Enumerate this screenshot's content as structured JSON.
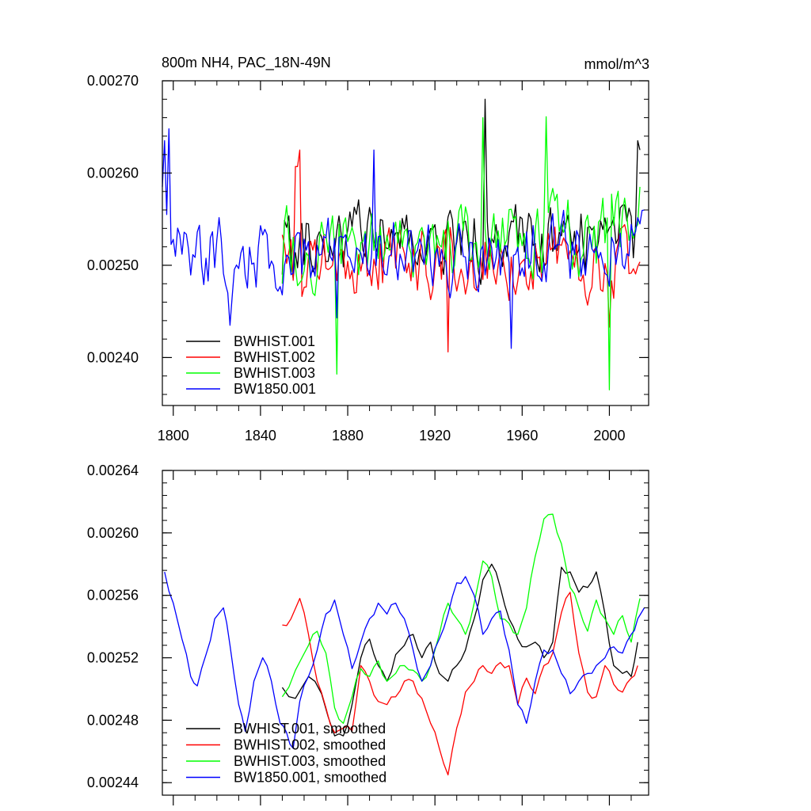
{
  "chart_data": [
    {
      "type": "line",
      "title": "800m NH4, PAC_18N-49N",
      "units": "mmol/m^3",
      "xlim": [
        1795,
        2018
      ],
      "ylim": [
        0.002348,
        0.0027
      ],
      "xticks": [
        1800,
        1840,
        1880,
        1920,
        1960,
        2000
      ],
      "yticks": [
        0.0024,
        0.0025,
        0.0026,
        0.0027
      ],
      "ytick_labels": [
        "0.00240",
        "0.00250",
        "0.00260",
        "0.00270"
      ],
      "series": [
        {
          "name": "BWHIST.001",
          "color": "#000000",
          "start": 1850,
          "end": 2014,
          "base": 0.00252,
          "amp": 4e-05,
          "trend": 1.2e-05,
          "seed": 11,
          "fixed": [
            [
              1850,
              0.00249
            ],
            [
              1943,
              0.00268
            ],
            [
              2013,
              0.002635
            ],
            [
              2014,
              0.002625
            ]
          ]
        },
        {
          "name": "BWHIST.002",
          "color": "#ff0000",
          "start": 1850,
          "end": 2014,
          "base": 0.002508,
          "amp": 4e-05,
          "trend": 0.0,
          "seed": 23,
          "fixed": [
            [
              1850,
              0.002533
            ],
            [
              1856,
              0.002607
            ],
            [
              1857,
              0.002607
            ],
            [
              1858,
              0.002625
            ],
            [
              1926,
              0.002406
            ],
            [
              2000,
              0.002433
            ]
          ]
        },
        {
          "name": "BWHIST.003",
          "color": "#00ff00",
          "start": 1850,
          "end": 2014,
          "base": 0.002515,
          "amp": 4.2e-05,
          "trend": 2e-05,
          "seed": 37,
          "fixed": [
            [
              1850,
              0.00248
            ],
            [
              1875,
              0.002382
            ],
            [
              1942,
              0.00266
            ],
            [
              1971,
              0.002661
            ],
            [
              2000,
              0.002365
            ],
            [
              2014,
              0.002585
            ]
          ]
        },
        {
          "name": "BW1850.001",
          "color": "#0000ff",
          "start": 1795,
          "end": 2016,
          "base": 0.002515,
          "amp": 4e-05,
          "trend": 0.0,
          "seed": 53,
          "fixed": [
            [
              1795,
              0.002585
            ],
            [
              1796,
              0.002635
            ],
            [
              1797,
              0.002555
            ],
            [
              1798,
              0.002648
            ],
            [
              1826,
              0.002435
            ],
            [
              1875,
              0.002443
            ],
            [
              1892,
              0.002625
            ],
            [
              1955,
              0.00241
            ],
            [
              2016,
              0.00256
            ]
          ]
        }
      ]
    },
    {
      "type": "line",
      "xlim": [
        1795,
        2018
      ],
      "ylim": [
        0.002432,
        0.00264
      ],
      "xticks": [
        1800,
        1840,
        1880,
        1920,
        1960,
        2000
      ],
      "yticks": [
        0.00244,
        0.00248,
        0.00252,
        0.00256,
        0.0026,
        0.00264
      ],
      "ytick_labels": [
        "0.00244",
        "0.00248",
        "0.00252",
        "0.00256",
        "0.00260",
        "0.00264"
      ],
      "series": [
        {
          "name": "BWHIST.001, smoothed",
          "color": "#000000",
          "x": [
            1850,
            1856,
            1862,
            1868,
            1874,
            1878,
            1882,
            1886,
            1890,
            1894,
            1898,
            1902,
            1906,
            1910,
            1914,
            1918,
            1922,
            1926,
            1930,
            1934,
            1938,
            1942,
            1946,
            1950,
            1954,
            1958,
            1962,
            1966,
            1970,
            1974,
            1978,
            1982,
            1986,
            1990,
            1994,
            1998,
            2002,
            2006,
            2010,
            2013
          ],
          "y": [
            0.002501,
            0.002494,
            0.002508,
            0.002497,
            0.00247,
            0.00247,
            0.00249,
            0.00252,
            0.002532,
            0.002515,
            0.002505,
            0.002522,
            0.002528,
            0.002535,
            0.00252,
            0.00253,
            0.00251,
            0.002505,
            0.002515,
            0.002525,
            0.002545,
            0.00257,
            0.00258,
            0.002565,
            0.002545,
            0.002532,
            0.002527,
            0.00253,
            0.00252,
            0.00253,
            0.002578,
            0.002575,
            0.002562,
            0.002565,
            0.002575,
            0.002548,
            0.002515,
            0.00251,
            0.002508,
            0.00253
          ]
        },
        {
          "name": "BWHIST.002, smoothed",
          "color": "#ff0000",
          "x": [
            1850,
            1854,
            1858,
            1862,
            1866,
            1870,
            1874,
            1878,
            1882,
            1886,
            1890,
            1894,
            1898,
            1902,
            1906,
            1910,
            1914,
            1918,
            1922,
            1926,
            1930,
            1934,
            1938,
            1942,
            1946,
            1950,
            1954,
            1958,
            1962,
            1966,
            1970,
            1974,
            1978,
            1982,
            1986,
            1990,
            1994,
            1998,
            2002,
            2006,
            2010,
            2013
          ],
          "y": [
            0.002541,
            0.002545,
            0.002558,
            0.002535,
            0.002505,
            0.002488,
            0.002472,
            0.002475,
            0.002473,
            0.002515,
            0.002505,
            0.002492,
            0.00249,
            0.002495,
            0.002505,
            0.002505,
            0.002494,
            0.002478,
            0.002462,
            0.002445,
            0.002475,
            0.002498,
            0.002505,
            0.002515,
            0.00251,
            0.002517,
            0.002515,
            0.00249,
            0.002507,
            0.002497,
            0.002515,
            0.002523,
            0.002549,
            0.002562,
            0.002523,
            0.002498,
            0.002495,
            0.002515,
            0.002503,
            0.002498,
            0.002507,
            0.002515
          ]
        },
        {
          "name": "BWHIST.003, smoothed",
          "color": "#00ff00",
          "x": [
            1850,
            1856,
            1862,
            1866,
            1870,
            1874,
            1878,
            1882,
            1886,
            1890,
            1894,
            1898,
            1902,
            1906,
            1910,
            1914,
            1918,
            1922,
            1926,
            1930,
            1934,
            1938,
            1942,
            1946,
            1950,
            1954,
            1958,
            1962,
            1966,
            1970,
            1974,
            1978,
            1982,
            1986,
            1990,
            1994,
            1998,
            2002,
            2006,
            2010,
            2014
          ],
          "y": [
            0.002495,
            0.002512,
            0.002528,
            0.002537,
            0.002523,
            0.002488,
            0.002478,
            0.002495,
            0.002513,
            0.002508,
            0.002518,
            0.002505,
            0.00251,
            0.002515,
            0.002512,
            0.002505,
            0.002515,
            0.002535,
            0.002555,
            0.002545,
            0.002535,
            0.002555,
            0.002582,
            0.002572,
            0.002545,
            0.002542,
            0.002535,
            0.002552,
            0.002585,
            0.002609,
            0.002612,
            0.002593,
            0.002565,
            0.002552,
            0.002537,
            0.002557,
            0.002545,
            0.002535,
            0.002547,
            0.00253,
            0.002558
          ]
        },
        {
          "name": "BW1850.001, smoothed",
          "color": "#0000ff",
          "x": [
            1796,
            1800,
            1804,
            1808,
            1811,
            1815,
            1819,
            1823,
            1826,
            1830,
            1833,
            1837,
            1841,
            1845,
            1849,
            1852,
            1855,
            1858,
            1862,
            1866,
            1870,
            1874,
            1878,
            1882,
            1886,
            1890,
            1894,
            1898,
            1902,
            1906,
            1910,
            1914,
            1918,
            1922,
            1926,
            1930,
            1934,
            1938,
            1942,
            1946,
            1950,
            1954,
            1958,
            1962,
            1966,
            1970,
            1974,
            1978,
            1982,
            1986,
            1990,
            1994,
            1998,
            2002,
            2006,
            2010,
            2013,
            2016
          ],
          "y": [
            0.002575,
            0.002555,
            0.002532,
            0.002508,
            0.002502,
            0.002522,
            0.002545,
            0.002552,
            0.002528,
            0.00249,
            0.002473,
            0.002505,
            0.00252,
            0.002505,
            0.002478,
            0.002472,
            0.002462,
            0.002492,
            0.002508,
            0.002525,
            0.002548,
            0.002557,
            0.002535,
            0.002513,
            0.00253,
            0.002545,
            0.002555,
            0.002548,
            0.002555,
            0.002545,
            0.002525,
            0.002505,
            0.002515,
            0.002532,
            0.002548,
            0.002568,
            0.002572,
            0.00256,
            0.002535,
            0.002545,
            0.00255,
            0.002525,
            0.00249,
            0.002478,
            0.002505,
            0.002525,
            0.002525,
            0.00251,
            0.002497,
            0.002505,
            0.00251,
            0.002515,
            0.00252,
            0.002527,
            0.002523,
            0.002535,
            0.002545,
            0.002552
          ]
        }
      ]
    }
  ]
}
